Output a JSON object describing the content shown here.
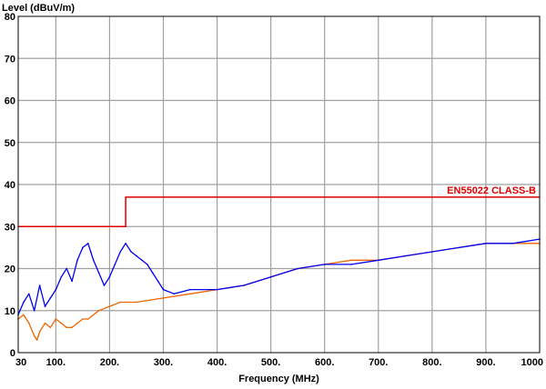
{
  "chart_data": {
    "type": "line",
    "ylabel": "Level (dBuV/m)",
    "xlabel": "Frequency (MHz)",
    "xlim": [
      30,
      1000
    ],
    "ylim": [
      0,
      80
    ],
    "grid": true,
    "x_ticks": [
      {
        "value": 30,
        "label": "30"
      },
      {
        "value": 100,
        "label": "100."
      },
      {
        "value": 200,
        "label": "200."
      },
      {
        "value": 300,
        "label": "300."
      },
      {
        "value": 400,
        "label": "400."
      },
      {
        "value": 500,
        "label": "500."
      },
      {
        "value": 600,
        "label": "600."
      },
      {
        "value": 700,
        "label": "700."
      },
      {
        "value": 800,
        "label": "800."
      },
      {
        "value": 900,
        "label": "900."
      },
      {
        "value": 1000,
        "label": "1000"
      }
    ],
    "y_ticks": [
      {
        "value": 0,
        "label": "0"
      },
      {
        "value": 10,
        "label": "10"
      },
      {
        "value": 20,
        "label": "20"
      },
      {
        "value": 30,
        "label": "30"
      },
      {
        "value": 40,
        "label": "40"
      },
      {
        "value": 50,
        "label": "50"
      },
      {
        "value": 60,
        "label": "60"
      },
      {
        "value": 70,
        "label": "70"
      },
      {
        "value": 80,
        "label": "80"
      }
    ],
    "limit_line": {
      "name": "EN55022 CLASS-B",
      "color": "#dd0000",
      "x": [
        30,
        230,
        230,
        1000
      ],
      "y": [
        30,
        30,
        37,
        37
      ]
    },
    "series": [
      {
        "color": "#0000ee",
        "x": [
          30,
          40,
          50,
          60,
          70,
          80,
          90,
          100,
          110,
          120,
          130,
          140,
          150,
          160,
          165,
          170,
          180,
          190,
          200,
          210,
          220,
          230,
          240,
          250,
          260,
          270,
          280,
          290,
          300,
          320,
          350,
          400,
          450,
          500,
          550,
          600,
          650,
          700,
          750,
          800,
          850,
          900,
          950,
          1000
        ],
        "y": [
          9,
          12,
          14,
          10,
          16,
          11,
          13,
          15,
          18,
          20,
          17,
          22,
          25,
          26,
          24,
          22,
          19,
          16,
          18,
          21,
          24,
          26,
          24,
          23,
          22,
          21,
          19,
          17,
          15,
          14,
          15,
          15,
          16,
          18,
          20,
          21,
          21,
          22,
          23,
          24,
          25,
          26,
          26,
          27
        ]
      },
      {
        "color": "#ee6600",
        "x": [
          30,
          40,
          50,
          60,
          65,
          70,
          80,
          90,
          100,
          110,
          120,
          130,
          140,
          150,
          160,
          170,
          180,
          200,
          220,
          250,
          300,
          350,
          400,
          450,
          500,
          550,
          600,
          650,
          700,
          750,
          800,
          850,
          900,
          950,
          1000
        ],
        "y": [
          8,
          9,
          7,
          4,
          3,
          5,
          7,
          6,
          8,
          7,
          6,
          6,
          7,
          8,
          8,
          9,
          10,
          11,
          12,
          12,
          13,
          14,
          15,
          16,
          18,
          20,
          21,
          22,
          22,
          23,
          24,
          25,
          26,
          26,
          26
        ]
      }
    ]
  }
}
